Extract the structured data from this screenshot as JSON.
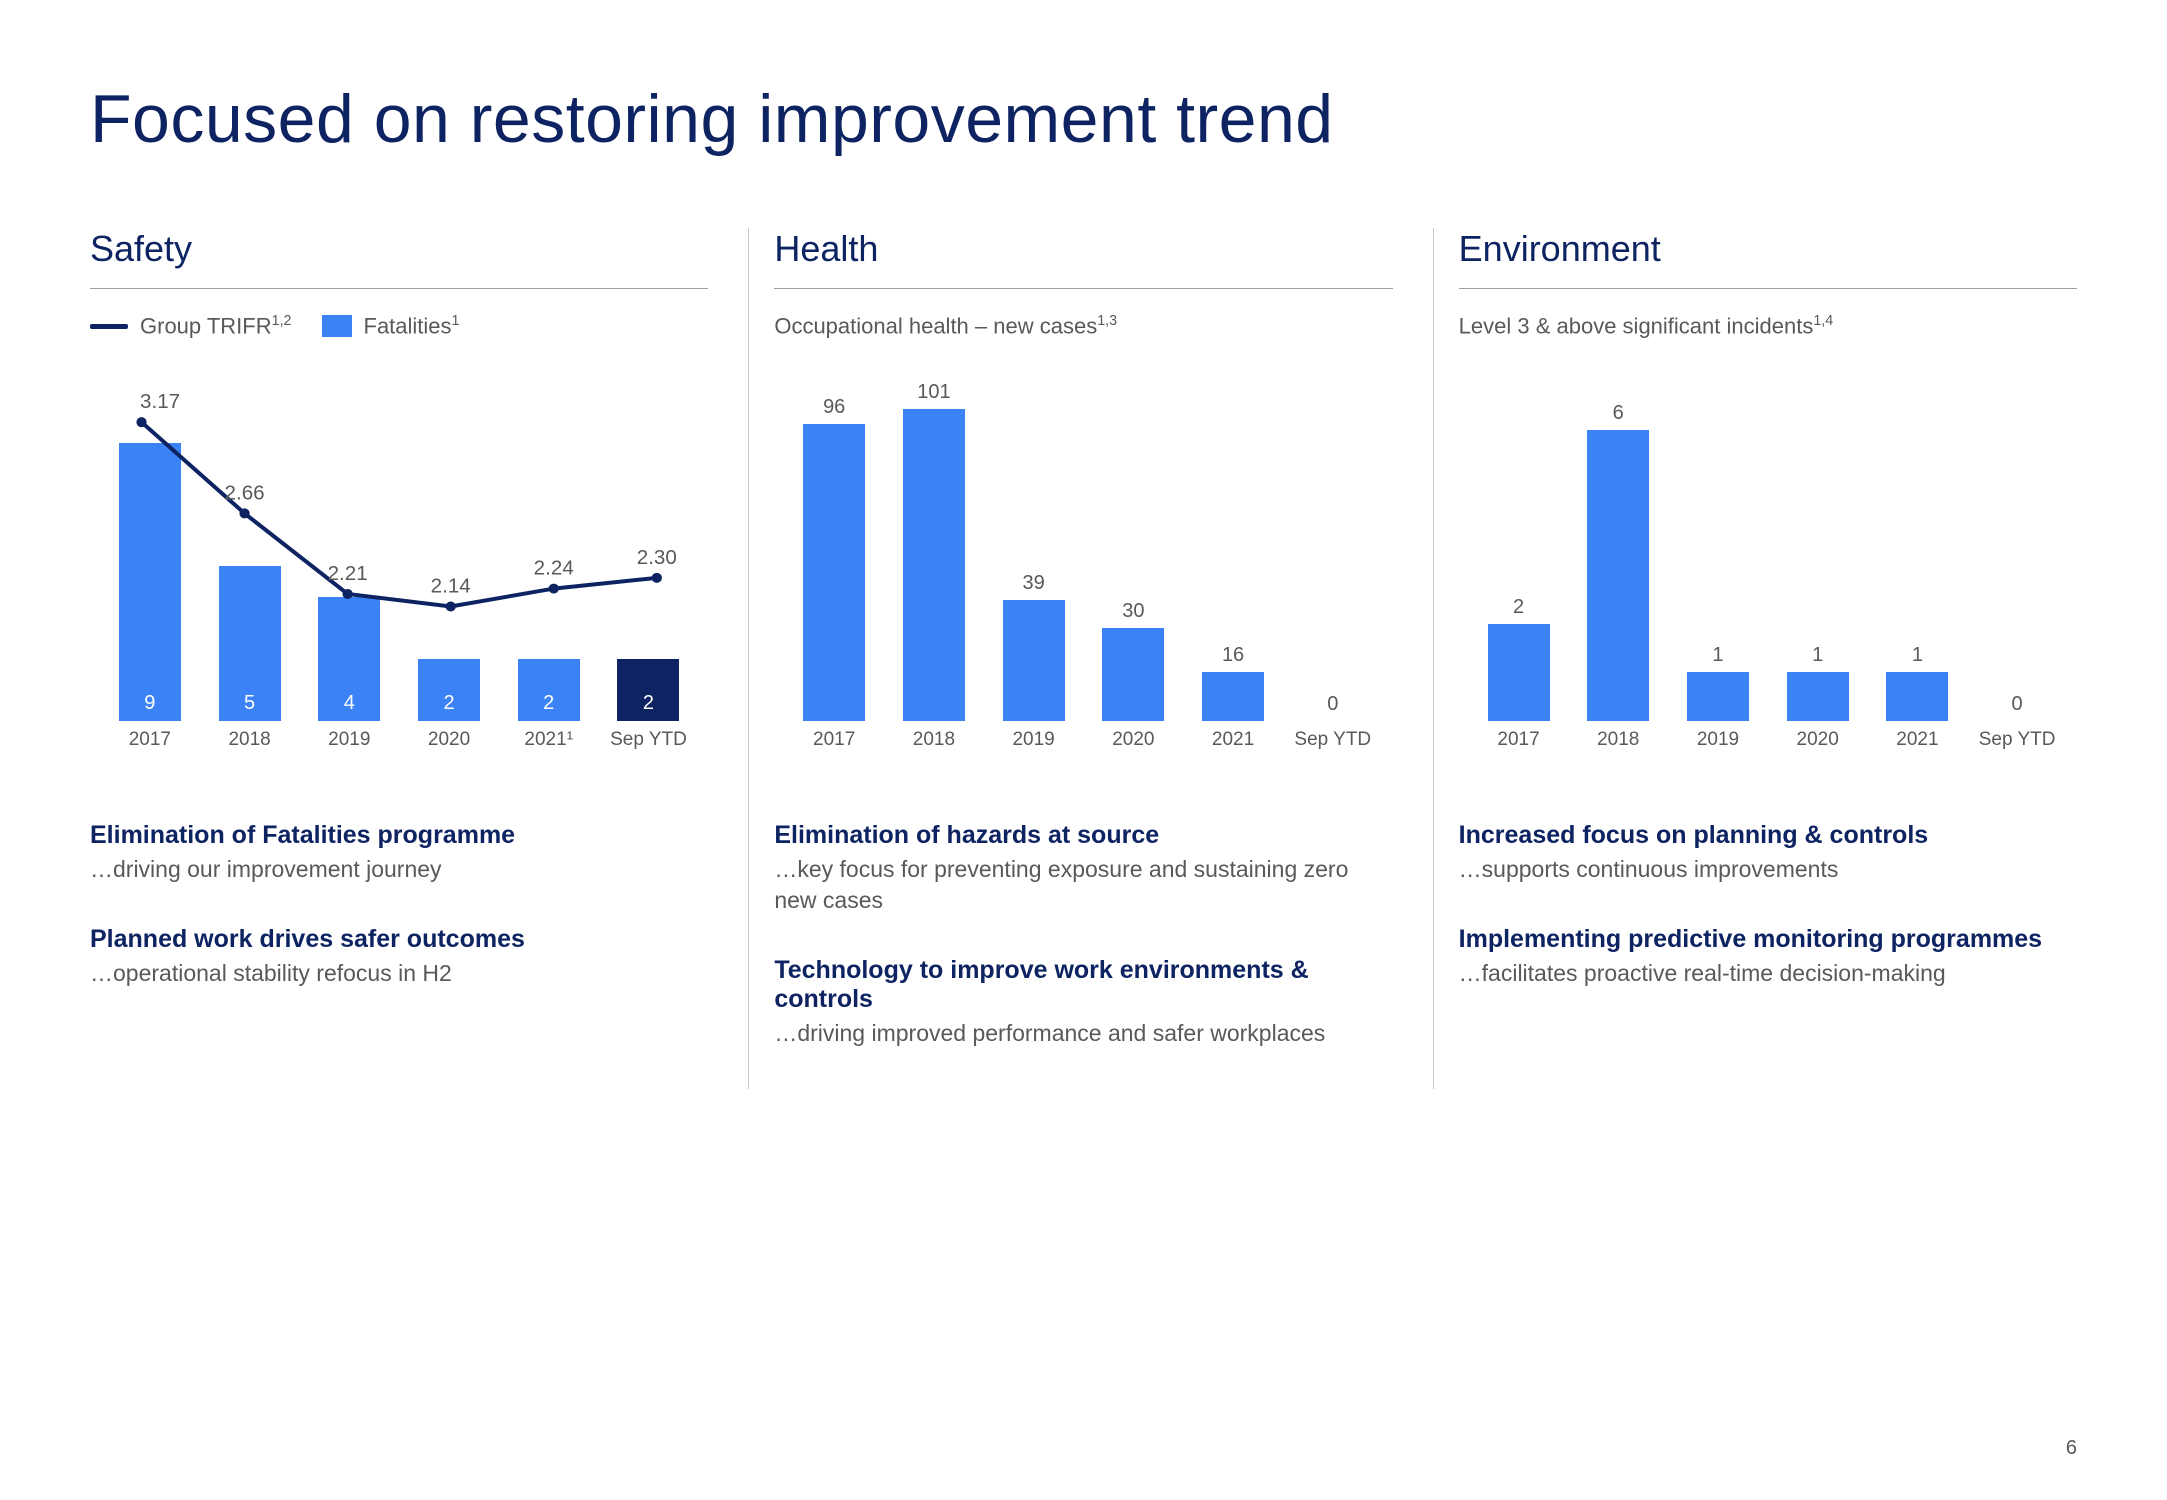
{
  "page_title": "Focused on restoring improvement trend",
  "page_number": "6",
  "colors": {
    "primary_dark": "#0d2362",
    "bar_blue": "#3b82f6",
    "text_grey": "#595959",
    "divider": "#c9c9c9"
  },
  "columns": [
    {
      "title": "Safety",
      "legend": [
        {
          "type": "line",
          "label": "Group TRIFR",
          "sup": "1,2"
        },
        {
          "type": "box",
          "label": "Fatalities",
          "sup": "1"
        }
      ],
      "chart": {
        "type": "bar+line",
        "categories": [
          "2017",
          "2018",
          "2019",
          "2020",
          "2021¹",
          "Sep YTD"
        ],
        "bars": {
          "values": [
            9,
            5,
            4,
            2,
            2,
            2
          ],
          "max_scale": 11,
          "color": "#3b82f6",
          "label_position": "inside",
          "last_dark": true
        },
        "line": {
          "values": [
            3.17,
            2.66,
            2.21,
            2.14,
            2.24,
            2.3
          ],
          "ymin": 1.5,
          "ymax": 3.4,
          "color": "#0d2362",
          "label_offset": "above"
        }
      },
      "bullets": [
        {
          "title": "Elimination of Fatalities programme",
          "sub": "…driving our improvement journey"
        },
        {
          "title": "Planned work drives safer outcomes",
          "sub": "…operational stability refocus in H2"
        }
      ]
    },
    {
      "title": "Health",
      "subtitle": "Occupational health – new cases",
      "subtitle_sup": "1,3",
      "chart": {
        "type": "bar",
        "categories": [
          "2017",
          "2018",
          "2019",
          "2020",
          "2021",
          "Sep YTD"
        ],
        "bars": {
          "values": [
            96,
            101,
            39,
            30,
            16,
            0
          ],
          "max_scale": 110,
          "color": "#3b82f6",
          "label_position": "above"
        }
      },
      "bullets": [
        {
          "title": "Elimination of hazards at source",
          "sub": "…key focus for preventing exposure and sustaining zero new cases"
        },
        {
          "title": "Technology to improve work environments & controls",
          "sub": "…driving improved performance and safer workplaces"
        }
      ]
    },
    {
      "title": "Environment",
      "subtitle": "Level 3 & above significant incidents",
      "subtitle_sup": "1,4",
      "chart": {
        "type": "bar",
        "categories": [
          "2017",
          "2018",
          "2019",
          "2020",
          "2021",
          "Sep YTD"
        ],
        "bars": {
          "values": [
            2,
            6,
            1,
            1,
            1,
            0
          ],
          "max_scale": 7,
          "color": "#3b82f6",
          "label_position": "above"
        }
      },
      "bullets": [
        {
          "title": "Increased focus on planning & controls",
          "sub": "…supports continuous improvements"
        },
        {
          "title": "Implementing predictive monitoring programmes",
          "sub": "…facilitates proactive real-time decision-making"
        }
      ]
    }
  ]
}
